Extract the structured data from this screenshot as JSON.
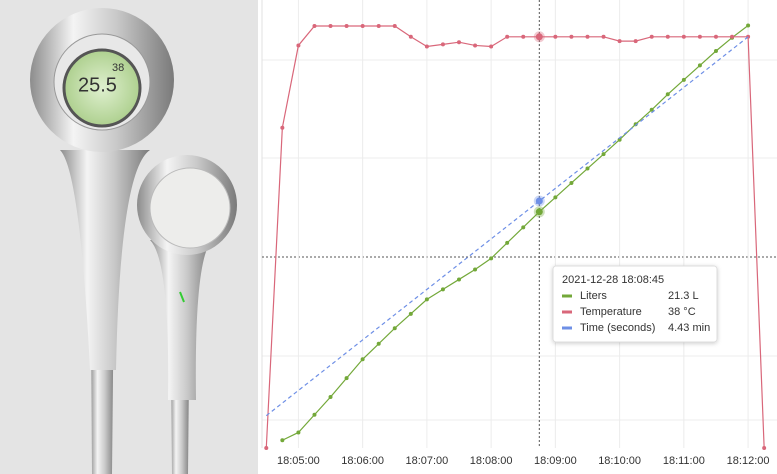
{
  "photo": {
    "display_texts": [
      "38",
      "25.5"
    ]
  },
  "chart_data": {
    "type": "line",
    "xlim": [
      "18:04:26",
      "18:12:27"
    ],
    "xticks": [
      "18:05:00",
      "18:06:00",
      "18:07:00",
      "18:08:00",
      "18:09:00",
      "18:10:00",
      "18:11:00",
      "18:12:00"
    ],
    "grid": true,
    "series": [
      {
        "name": "Liters",
        "color": "#73a839",
        "dashed": false,
        "markers": true,
        "ylim": [
          0,
          40.4
        ],
        "x": [
          "18:04:45",
          "18:05:00",
          "18:05:15",
          "18:05:30",
          "18:05:45",
          "18:06:00",
          "18:06:15",
          "18:06:30",
          "18:06:45",
          "18:07:00",
          "18:07:15",
          "18:07:30",
          "18:07:45",
          "18:08:00",
          "18:08:15",
          "18:08:30",
          "18:08:45",
          "18:09:00",
          "18:09:15",
          "18:09:30",
          "18:09:45",
          "18:10:00",
          "18:10:15",
          "18:10:30",
          "18:10:45",
          "18:11:00",
          "18:11:15",
          "18:11:30",
          "18:11:45",
          "18:12:00"
        ],
        "values": [
          0.7,
          1.4,
          3.0,
          4.6,
          6.3,
          8.0,
          9.4,
          10.8,
          12.1,
          13.4,
          14.3,
          15.2,
          16.1,
          17.1,
          18.5,
          19.9,
          21.3,
          22.6,
          23.9,
          25.2,
          26.5,
          27.8,
          29.2,
          30.5,
          31.9,
          33.2,
          34.5,
          35.8,
          37.0,
          38.1
        ]
      },
      {
        "name": "Temperature",
        "color": "#d9677a",
        "dashed": false,
        "markers": true,
        "ylim": [
          0,
          41.4
        ],
        "x": [
          "18:04:30",
          "18:04:45",
          "18:05:00",
          "18:05:15",
          "18:05:30",
          "18:05:45",
          "18:06:00",
          "18:06:15",
          "18:06:30",
          "18:06:45",
          "18:07:00",
          "18:07:15",
          "18:07:30",
          "18:07:45",
          "18:08:00",
          "18:08:15",
          "18:08:30",
          "18:08:45",
          "18:09:00",
          "18:09:15",
          "18:09:30",
          "18:09:45",
          "18:10:00",
          "18:10:15",
          "18:10:30",
          "18:10:45",
          "18:11:00",
          "18:11:15",
          "18:11:30",
          "18:11:45",
          "18:12:00",
          "18:12:15"
        ],
        "values": [
          0,
          29.6,
          37.2,
          39,
          39,
          39,
          39,
          39,
          39,
          38,
          37.1,
          37.3,
          37.5,
          37.2,
          37.1,
          38,
          38,
          38,
          38,
          38,
          38,
          38,
          37.6,
          37.6,
          38,
          38,
          38,
          38,
          38,
          38,
          38,
          0
        ]
      },
      {
        "name": "Time (seconds)",
        "color": "#6e8fe6",
        "dashed": true,
        "markers": false,
        "ylim": [
          -0.46,
          8.41
        ],
        "x": [
          "18:04:30",
          "18:04:45",
          "18:05:00",
          "18:05:15",
          "18:05:30",
          "18:05:45",
          "18:06:00",
          "18:06:15",
          "18:06:30",
          "18:06:45",
          "18:07:00",
          "18:07:15",
          "18:07:30",
          "18:07:45",
          "18:08:00",
          "18:08:15",
          "18:08:30",
          "18:08:45",
          "18:09:00",
          "18:09:15",
          "18:09:30",
          "18:09:45",
          "18:10:00",
          "18:10:15",
          "18:10:30",
          "18:10:45",
          "18:11:00",
          "18:11:15",
          "18:11:30",
          "18:11:45",
          "18:12:00"
        ],
        "values": [
          0.18,
          0.43,
          0.68,
          0.93,
          1.18,
          1.43,
          1.68,
          1.93,
          2.18,
          2.43,
          2.68,
          2.93,
          3.18,
          3.43,
          3.68,
          3.93,
          4.18,
          4.43,
          4.68,
          4.93,
          5.18,
          5.43,
          5.68,
          5.93,
          6.18,
          6.43,
          6.68,
          6.93,
          7.18,
          7.43,
          7.68
        ]
      }
    ],
    "tooltip": {
      "title": "2021-12-28 18:08:45",
      "x": "18:08:45",
      "values": [
        "21.3 L",
        "38 °C",
        "4.43 min"
      ]
    }
  }
}
